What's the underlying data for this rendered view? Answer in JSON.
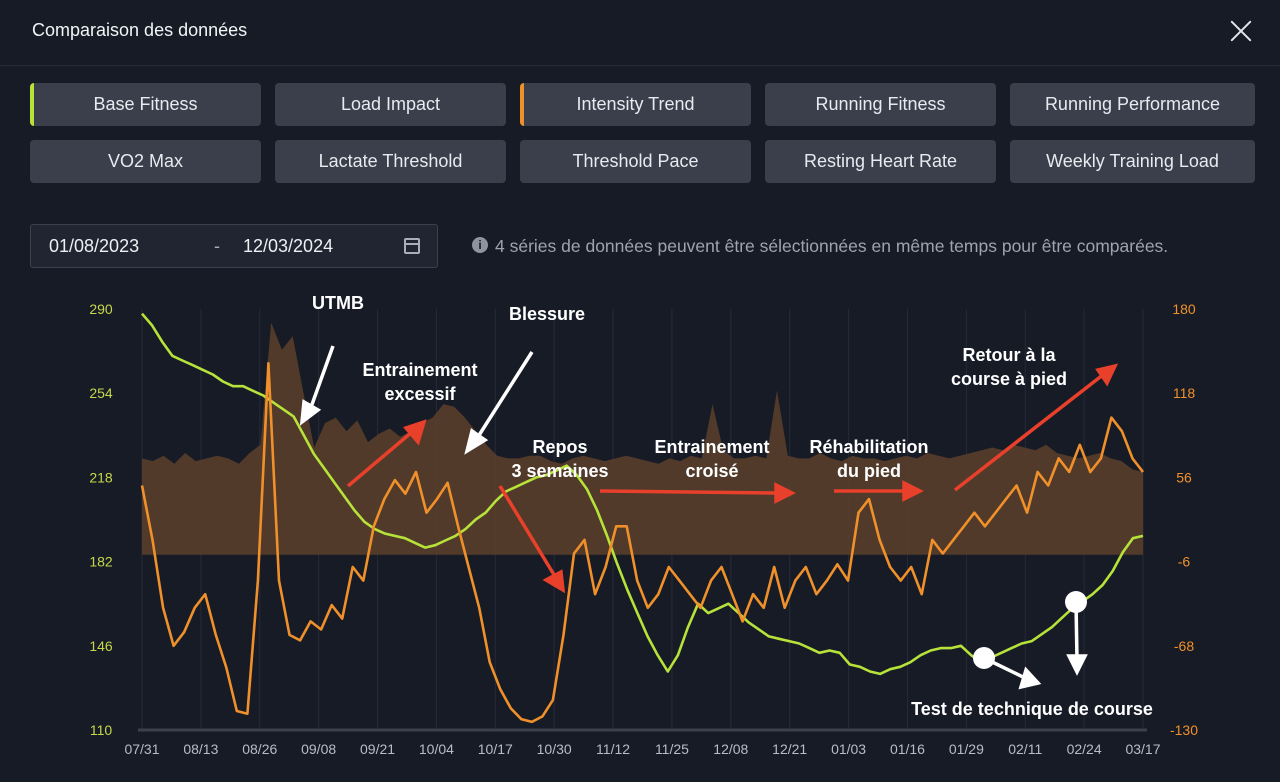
{
  "dialog": {
    "title": "Comparaison des données",
    "close_label": "close-icon"
  },
  "metric_buttons": [
    {
      "label": "Base Fitness",
      "selected": true,
      "accent": "#b6e23a"
    },
    {
      "label": "Load Impact",
      "selected": false,
      "accent": ""
    },
    {
      "label": "Intensity Trend",
      "selected": true,
      "accent": "#f0902a"
    },
    {
      "label": "Running Fitness",
      "selected": false,
      "accent": ""
    },
    {
      "label": "Running Performance",
      "selected": false,
      "accent": ""
    },
    {
      "label": "VO2 Max",
      "selected": false,
      "accent": ""
    },
    {
      "label": "Lactate Threshold",
      "selected": false,
      "accent": ""
    },
    {
      "label": "Threshold Pace",
      "selected": false,
      "accent": ""
    },
    {
      "label": "Resting Heart Rate",
      "selected": false,
      "accent": ""
    },
    {
      "label": "Weekly Training Load",
      "selected": false,
      "accent": ""
    }
  ],
  "date_range": {
    "start": "01/08/2023",
    "separator": "-",
    "end": "12/03/2024",
    "icon": "calendar-icon"
  },
  "info": {
    "icon": "info-icon",
    "text": "4 séries de données peuvent être sélectionnées en même temps pour être comparées."
  },
  "colors": {
    "background": "#171b26",
    "button": "#3a3f4b",
    "base_fitness": "#b6e23a",
    "intensity_trend": "#f0902a",
    "load_area": "#5c3f2c",
    "annotation_arrow_red": "#e8402a",
    "annotation_arrow_white": "#ffffff"
  },
  "chart_data": {
    "type": "line",
    "x_ticks": [
      "07/31",
      "08/13",
      "08/26",
      "09/08",
      "09/21",
      "10/04",
      "10/17",
      "10/30",
      "11/12",
      "11/25",
      "12/08",
      "12/21",
      "01/03",
      "01/16",
      "01/29",
      "02/11",
      "02/24",
      "03/17"
    ],
    "y_left_ticks": [
      "290",
      "254",
      "218",
      "182",
      "146",
      "110"
    ],
    "y_right_ticks": [
      "180",
      "118",
      "56",
      "-6",
      "-68",
      "-130"
    ],
    "ylim_left": [
      110,
      290
    ],
    "ylim_right": [
      -130,
      180
    ],
    "grid": "vertical",
    "series": [
      {
        "name": "Base Fitness",
        "axis": "left",
        "color": "#b6e23a",
        "values": [
          288,
          283,
          276,
          270,
          268,
          266,
          264,
          262,
          259,
          257,
          257,
          255,
          253,
          250,
          247,
          244,
          236,
          228,
          222,
          216,
          210,
          204,
          199,
          196,
          194,
          193,
          192,
          190,
          188,
          189,
          191,
          193,
          196,
          200,
          203,
          208,
          212,
          214,
          216,
          218,
          219,
          221,
          223,
          219,
          213,
          204,
          193,
          181,
          170,
          160,
          150,
          142,
          135,
          142,
          154,
          164,
          160,
          162,
          164,
          160,
          156,
          153,
          150,
          149,
          148,
          147,
          145,
          143,
          144,
          143,
          138,
          137,
          135,
          134,
          136,
          137,
          139,
          142,
          144,
          145,
          145,
          146,
          142,
          139,
          141,
          143,
          145,
          147,
          148,
          151,
          154,
          158,
          162,
          165,
          168,
          172,
          178,
          186,
          192,
          193
        ],
        "x_range": [
          "07/31",
          "03/17"
        ]
      },
      {
        "name": "Intensity Trend",
        "axis": "right",
        "color": "#f0902a",
        "values": [
          50,
          10,
          -40,
          -68,
          -58,
          -40,
          -30,
          -60,
          -84,
          -116,
          -118,
          -20,
          140,
          -20,
          -60,
          -64,
          -50,
          -56,
          -38,
          -48,
          -10,
          -20,
          20,
          40,
          54,
          44,
          60,
          30,
          40,
          52,
          20,
          -10,
          -40,
          -80,
          -100,
          -114,
          -122,
          -124,
          -120,
          -108,
          -60,
          0,
          10,
          -30,
          -10,
          20,
          20,
          -20,
          -40,
          -30,
          -10,
          -20,
          -30,
          -40,
          -20,
          -10,
          -30,
          -50,
          -30,
          -40,
          -10,
          -40,
          -20,
          -10,
          -30,
          -20,
          -8,
          -20,
          30,
          40,
          10,
          -10,
          -20,
          -10,
          -30,
          10,
          0,
          10,
          20,
          30,
          20,
          30,
          40,
          50,
          30,
          60,
          50,
          70,
          60,
          80,
          60,
          70,
          100,
          90,
          70,
          60
        ],
        "x_range": [
          "07/31",
          "03/17"
        ]
      },
      {
        "name": "Weekly Training Load",
        "axis": "right",
        "type": "area",
        "color": "#5c3f2c",
        "values": [
          70,
          68,
          72,
          66,
          74,
          68,
          70,
          72,
          70,
          66,
          74,
          80,
          170,
          150,
          160,
          118,
          78,
          96,
          100,
          90,
          98,
          82,
          88,
          92,
          86,
          90,
          96,
          100,
          110,
          108,
          100,
          90,
          80,
          72,
          70,
          70,
          72,
          72,
          68,
          66,
          70,
          72,
          70,
          68,
          70,
          72,
          70,
          68,
          66,
          70,
          68,
          72,
          70,
          110,
          76,
          70,
          70,
          72,
          70,
          120,
          72,
          70,
          70,
          74,
          70,
          68,
          72,
          70,
          70,
          68,
          70,
          72,
          70,
          74,
          72,
          70,
          72,
          74,
          76,
          78,
          76,
          80,
          78,
          76,
          80,
          74,
          72,
          70,
          72,
          74,
          70,
          68,
          62,
          60
        ]
      }
    ],
    "annotations": [
      "UTMB",
      "Entrainement excessif",
      "Blessure",
      "Repos 3 semaines",
      "Entrainement croisé",
      "Réhabilitation du pied",
      "Retour à la course à pied",
      "Test de technique de course"
    ]
  }
}
